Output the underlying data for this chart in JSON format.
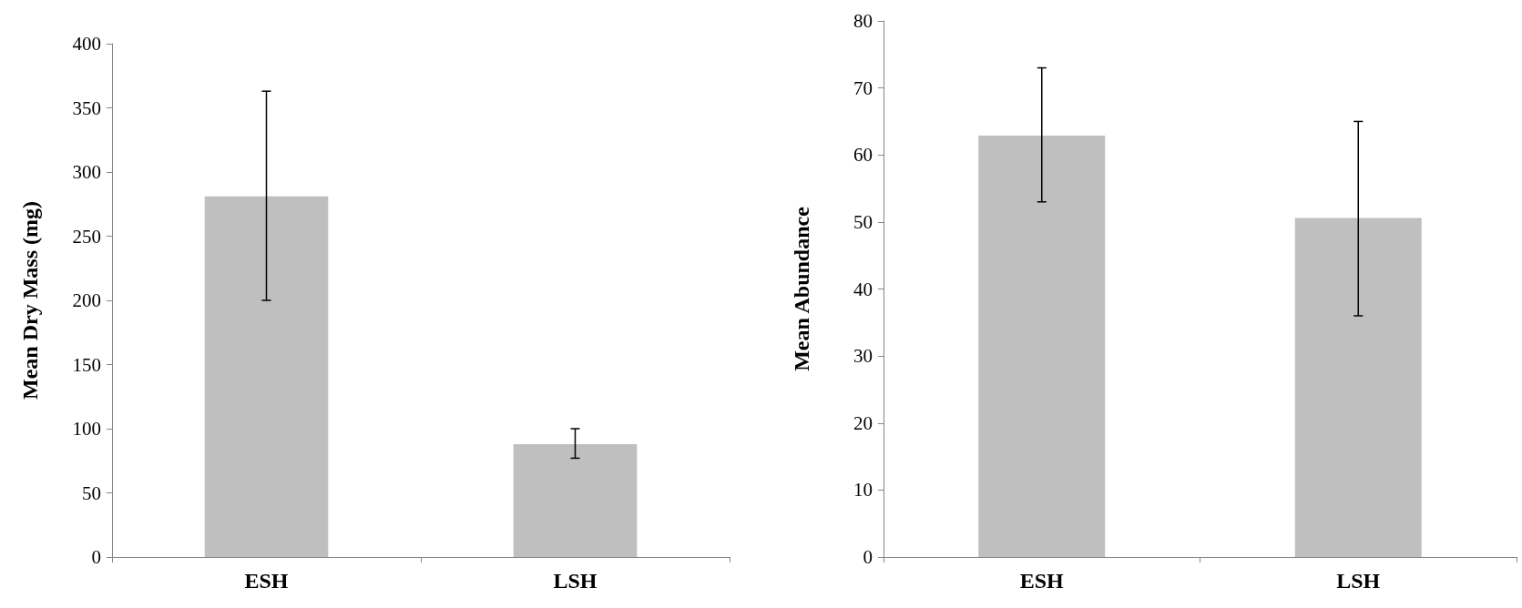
{
  "chart_data": [
    {
      "type": "bar",
      "ylabel": "Mean Dry Mass (mg)",
      "categories": [
        "ESH",
        "LSH"
      ],
      "values": [
        281,
        88
      ],
      "errors": [
        [
          200,
          363
        ],
        [
          77,
          100
        ]
      ],
      "color": "#bfbfbf",
      "ylim": [
        0,
        400
      ],
      "yticks": [
        0,
        50,
        100,
        150,
        200,
        250,
        300,
        350,
        400
      ],
      "grid": false
    },
    {
      "type": "bar",
      "ylabel": "Mean Abundance",
      "categories": [
        "ESH",
        "LSH"
      ],
      "values": [
        62.9,
        50.6
      ],
      "errors": [
        [
          53,
          73
        ],
        [
          36,
          65
        ]
      ],
      "color": "#bfbfbf",
      "ylim": [
        0,
        80
      ],
      "yticks": [
        0,
        10,
        20,
        30,
        40,
        50,
        60,
        70,
        80
      ],
      "grid": false
    }
  ]
}
